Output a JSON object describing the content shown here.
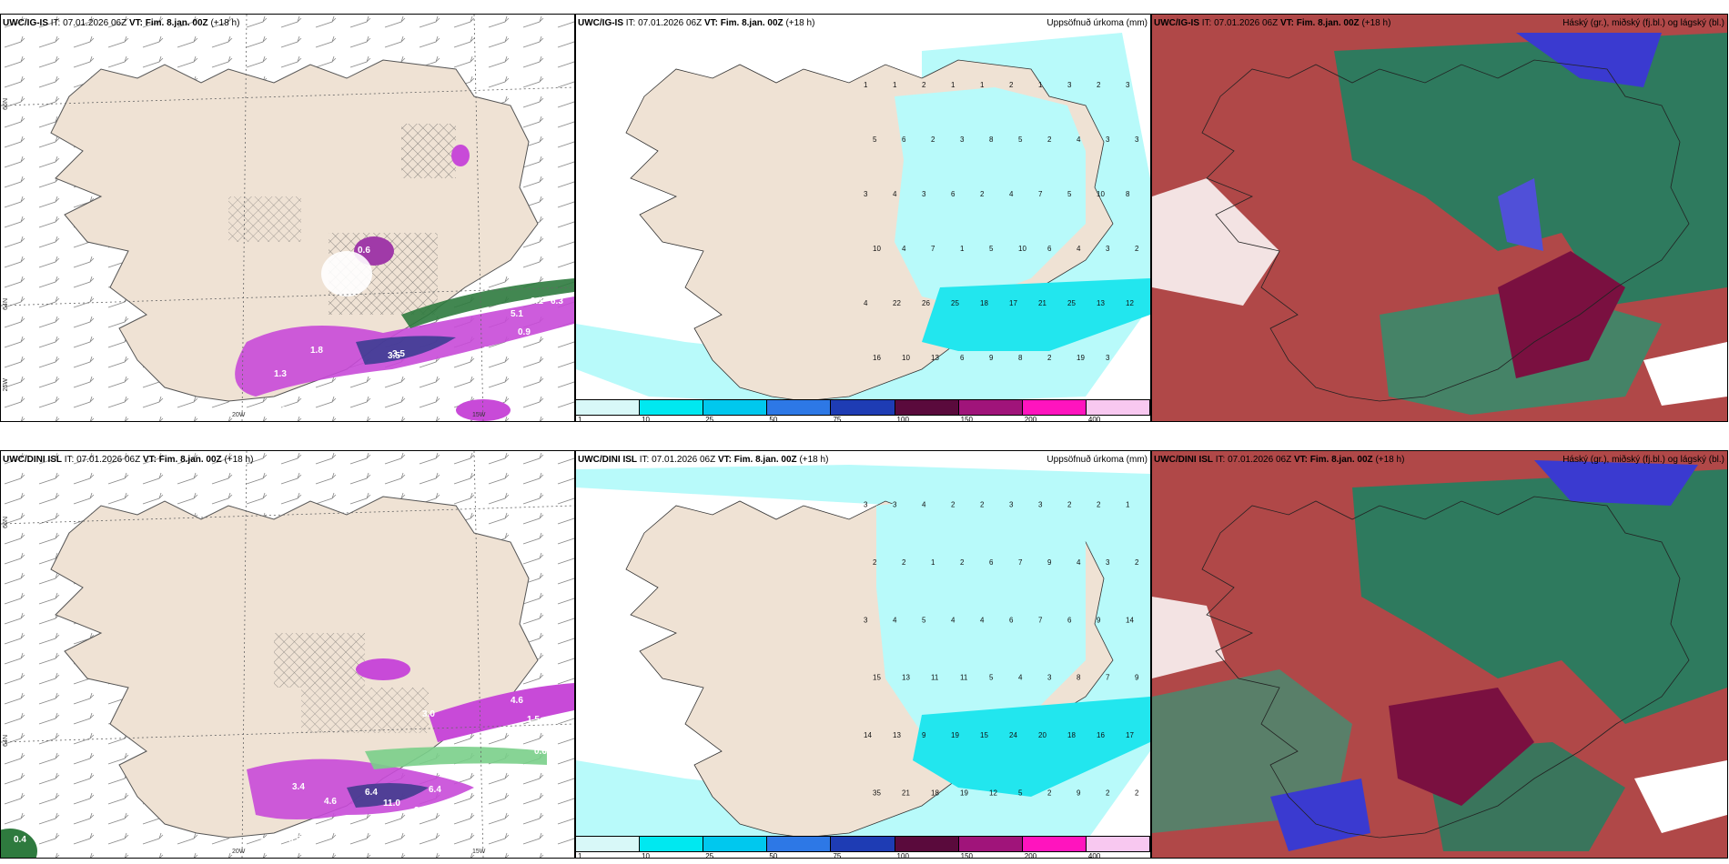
{
  "panels": {
    "p1": {
      "model": "UWC/IG-IS",
      "it": "IT: 07.01.2026 06Z",
      "vt": "VT: Fim. 8.jan. 00Z",
      "lead": "(+18 h)",
      "right_title": ""
    },
    "p2": {
      "model": "UWC/IG-IS",
      "it": "IT: 07.01.2026 06Z",
      "vt": "VT: Fim. 8.jan. 00Z",
      "lead": "(+18 h)",
      "right_title": "Uppsöfnuð úrkoma (mm)"
    },
    "p3": {
      "model": "UWC/IG-IS",
      "it": "IT: 07.01.2026 06Z",
      "vt": "VT: Fim. 8.jan. 00Z",
      "lead": "(+18 h)",
      "right_title": "Háský (gr.), miðský (fj.bl.) og lágský (bl.)"
    },
    "p4": {
      "model": "UWC/DINI ISL",
      "it": "IT: 07.01.2026 06Z",
      "vt": "VT: Fim. 8.jan. 00Z",
      "lead": "(+18 h)",
      "right_title": ""
    },
    "p5": {
      "model": "UWC/DINI ISL",
      "it": "IT: 07.01.2026 06Z",
      "vt": "VT: Fim. 8.jan. 00Z",
      "lead": "(+18 h)",
      "right_title": "Uppsöfnuð úrkoma (mm)"
    },
    "p6": {
      "model": "UWC/DINI ISL",
      "it": "IT: 07.01.2026 06Z",
      "vt": "VT: Fim. 8.jan. 00Z",
      "lead": "(+18 h)",
      "right_title": "Háský (gr.), miðský (fj.bl.) og lágský (bl.)"
    }
  },
  "axis_labels": {
    "lat66": "66N",
    "lat64": "64N",
    "lon20": "20W",
    "lon15": "15W",
    "lon25": "25W"
  },
  "precip_legend": {
    "labels": [
      "1",
      "10",
      "25",
      "50",
      "75",
      "100",
      "150",
      "200",
      "400"
    ],
    "colors": [
      "#d8f8f8",
      "#00e8f0",
      "#00c8ee",
      "#2d78e6",
      "#1e3cb4",
      "#5a0a3c",
      "#a0147a",
      "#ff14be",
      "#f8c8f0"
    ]
  },
  "colors": {
    "land": "#efe2d4",
    "precip_light": "#b8fafa",
    "precip_mid": "#22e6ee",
    "wind_purple": "#c84ad8",
    "cloud_high": "#2e7a5e",
    "cloud_mid": "#b04848",
    "cloud_low": "#3a3ad0"
  },
  "p1_values": [
    "0.6",
    "1.8",
    "3.5",
    "1.3",
    "1.8",
    "3.5",
    "3.1",
    "1.9",
    "0.9",
    "0.8",
    "0.6",
    "5.1",
    "6.3"
  ],
  "p4_values": [
    "3.0",
    "3.4",
    "4.6",
    "6.4",
    "11.0",
    "3.0",
    "6.4",
    "1.0",
    "0.5",
    "0.9",
    "0.4",
    "4.6",
    "1.5",
    "0.6"
  ],
  "p2_precip": [
    "1",
    "1",
    "2",
    "1",
    "1",
    "2",
    "1",
    "3",
    "2",
    "3",
    "5",
    "6",
    "2",
    "3",
    "8",
    "5",
    "2",
    "4",
    "3",
    "3",
    "3",
    "4",
    "3",
    "6",
    "2",
    "4",
    "7",
    "5",
    "10",
    "8",
    "10",
    "4",
    "7",
    "1",
    "5",
    "10",
    "6",
    "4",
    "3",
    "2",
    "4",
    "22",
    "26",
    "25",
    "18",
    "17",
    "21",
    "25",
    "13",
    "12",
    "16",
    "10",
    "13",
    "6",
    "9",
    "8",
    "2",
    "19",
    "3"
  ],
  "p5_precip": [
    "3",
    "3",
    "4",
    "2",
    "2",
    "3",
    "3",
    "2",
    "2",
    "1",
    "2",
    "2",
    "1",
    "2",
    "6",
    "7",
    "9",
    "4",
    "3",
    "2",
    "3",
    "4",
    "5",
    "4",
    "4",
    "6",
    "7",
    "6",
    "9",
    "14",
    "15",
    "13",
    "11",
    "11",
    "5",
    "4",
    "3",
    "8",
    "7",
    "9",
    "14",
    "13",
    "9",
    "19",
    "15",
    "24",
    "20",
    "18",
    "16",
    "17",
    "35",
    "21",
    "18",
    "19",
    "12",
    "5",
    "2",
    "9",
    "2",
    "2"
  ],
  "p1_scale_label": "25W",
  "cloud_legend_words": {
    "high": "Háský (gr.)",
    "mid": "miðský (fj.bl.)",
    "low": "lágský (bl.)"
  }
}
